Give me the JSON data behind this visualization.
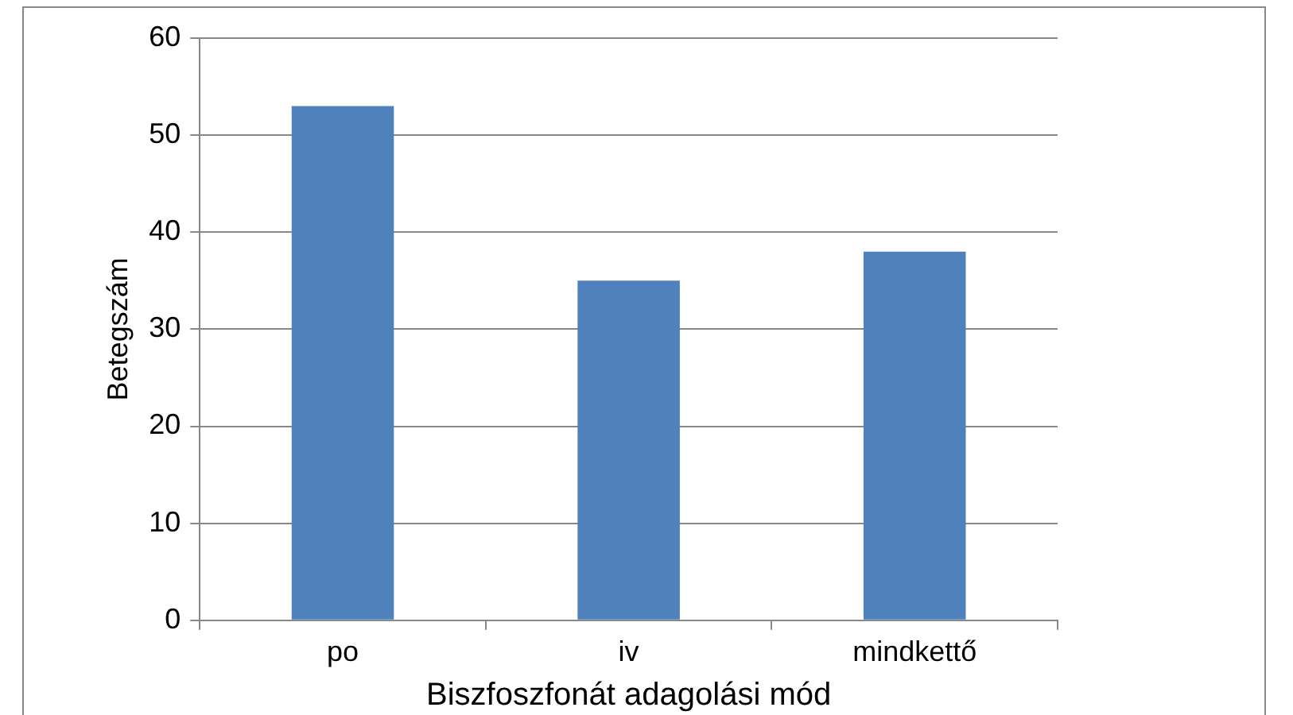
{
  "chart_data": {
    "type": "bar",
    "xlabel": "Biszfoszfonát adagolási mód",
    "ylabel": "Betegszám",
    "categories": [
      "po",
      "iv",
      "mindkettő"
    ],
    "values": [
      53,
      35,
      38
    ],
    "color": "#4f81bd",
    "ylim": [
      0,
      60
    ],
    "yticks": [
      0,
      10,
      20,
      30,
      40,
      50,
      60
    ],
    "grid": "y"
  }
}
